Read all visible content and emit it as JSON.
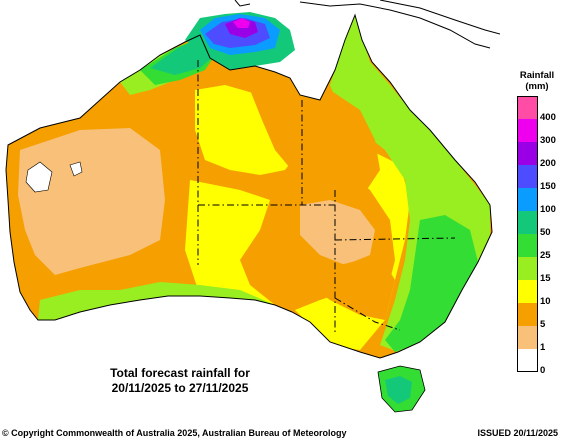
{
  "map": {
    "title_line1": "Total forecast rainfall for",
    "title_line2": "20/11/2025 to 27/11/2025"
  },
  "legend": {
    "title": "Rainfall",
    "unit": "(mm)",
    "items": [
      {
        "label": "400",
        "color": "#ff4da6"
      },
      {
        "label": "300",
        "color": "#ee00ee"
      },
      {
        "label": "200",
        "color": "#9a00e6"
      },
      {
        "label": "150",
        "color": "#4d4dff"
      },
      {
        "label": "100",
        "color": "#0a9cff"
      },
      {
        "label": "50",
        "color": "#14c87a"
      },
      {
        "label": "25",
        "color": "#33dd33"
      },
      {
        "label": "15",
        "color": "#99ee22"
      },
      {
        "label": "10",
        "color": "#ffff00"
      },
      {
        "label": "5",
        "color": "#f5a000"
      },
      {
        "label": "1",
        "color": "#f8c078"
      },
      {
        "label": "0",
        "color": "#ffffff"
      }
    ]
  },
  "footer": {
    "copyright": "© Copyright Commonwealth of Australia 2025, Australian Bureau of Meteorology",
    "issued": "ISSUED 20/11/2025"
  }
}
